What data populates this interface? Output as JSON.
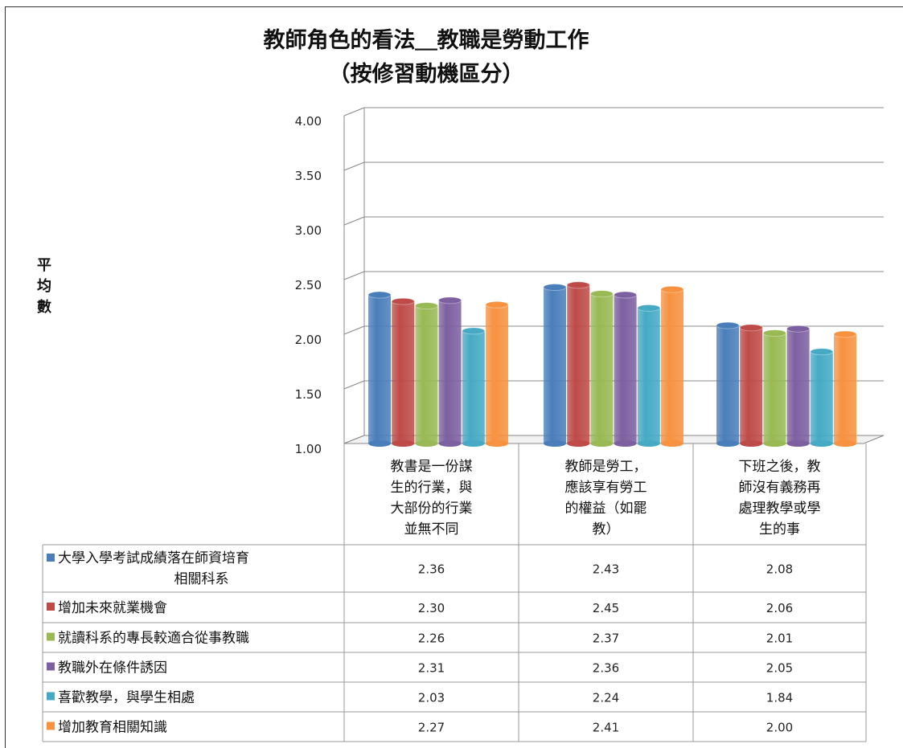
{
  "chart_data": {
    "type": "bar",
    "title": "教師角色的看法＿教職是勞動工作",
    "subtitle": "（按修習動機區分）",
    "ylabel": "平均數",
    "ylim": [
      1.0,
      4.0
    ],
    "yticks": [
      "4.00",
      "3.50",
      "3.00",
      "2.50",
      "2.00",
      "1.50",
      "1.00"
    ],
    "categories": [
      [
        "教書是一份謀",
        "生的行業，與",
        "大部份的行業",
        "並無不同"
      ],
      [
        "教師是勞工，",
        "應該享有勞工",
        "的權益（如罷",
        "教）"
      ],
      [
        "下班之後，教",
        "師沒有義務再",
        "處理教學或學",
        "生的事"
      ]
    ],
    "series": [
      {
        "name": [
          "大學入學考試成績落在師資培育",
          "相關科系"
        ],
        "color": "#4a7ebb",
        "values": [
          2.36,
          2.43,
          2.08
        ],
        "labels": [
          "2.36",
          "2.43",
          "2.08"
        ]
      },
      {
        "name": [
          "增加未來就業機會"
        ],
        "color": "#be4b48",
        "values": [
          2.3,
          2.45,
          2.06
        ],
        "labels": [
          "2.30",
          "2.45",
          "2.06"
        ]
      },
      {
        "name": [
          "就讀科系的專長較適合從事教職"
        ],
        "color": "#98b954",
        "values": [
          2.26,
          2.37,
          2.01
        ],
        "labels": [
          "2.26",
          "2.37",
          "2.01"
        ]
      },
      {
        "name": [
          "教職外在條件誘因"
        ],
        "color": "#7d60a0",
        "values": [
          2.31,
          2.36,
          2.05
        ],
        "labels": [
          "2.31",
          "2.36",
          "2.05"
        ]
      },
      {
        "name": [
          "喜歡教學，與學生相處"
        ],
        "color": "#46aac5",
        "values": [
          2.03,
          2.24,
          1.84
        ],
        "labels": [
          "2.03",
          "2.24",
          "1.84"
        ]
      },
      {
        "name": [
          "增加教育相關知識"
        ],
        "color": "#f69240",
        "values": [
          2.27,
          2.41,
          2.0
        ],
        "labels": [
          "2.27",
          "2.41",
          "2.00"
        ]
      }
    ],
    "grid": true,
    "legend": "data-table"
  }
}
